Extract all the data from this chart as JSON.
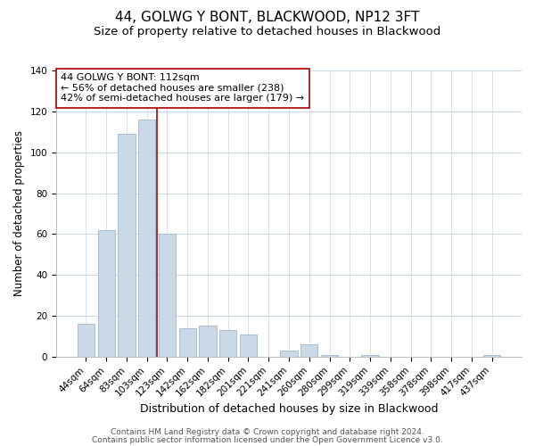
{
  "title": "44, GOLWG Y BONT, BLACKWOOD, NP12 3FT",
  "subtitle": "Size of property relative to detached houses in Blackwood",
  "xlabel": "Distribution of detached houses by size in Blackwood",
  "ylabel": "Number of detached properties",
  "bar_labels": [
    "44sqm",
    "64sqm",
    "83sqm",
    "103sqm",
    "123sqm",
    "142sqm",
    "162sqm",
    "182sqm",
    "201sqm",
    "221sqm",
    "241sqm",
    "260sqm",
    "280sqm",
    "299sqm",
    "319sqm",
    "339sqm",
    "358sqm",
    "378sqm",
    "398sqm",
    "417sqm",
    "437sqm"
  ],
  "bar_values": [
    16,
    62,
    109,
    116,
    60,
    14,
    15,
    13,
    11,
    0,
    3,
    6,
    1,
    0,
    1,
    0,
    0,
    0,
    0,
    0,
    1
  ],
  "bar_color": "#c9d9e8",
  "bar_edge_color": "#a0b8cc",
  "vline_x": 3.5,
  "vline_color": "#aa0000",
  "annotation_line1": "44 GOLWG Y BONT: 112sqm",
  "annotation_line2": "← 56% of detached houses are smaller (238)",
  "annotation_line3": "42% of semi-detached houses are larger (179) →",
  "ylim": [
    0,
    140
  ],
  "yticks": [
    0,
    20,
    40,
    60,
    80,
    100,
    120,
    140
  ],
  "footer_line1": "Contains HM Land Registry data © Crown copyright and database right 2024.",
  "footer_line2": "Contains public sector information licensed under the Open Government Licence v3.0.",
  "background_color": "#ffffff",
  "grid_color": "#c8d8e8",
  "title_fontsize": 11,
  "subtitle_fontsize": 9.5,
  "xlabel_fontsize": 9,
  "ylabel_fontsize": 8.5,
  "tick_fontsize": 7.5,
  "annotation_fontsize": 8,
  "footer_fontsize": 6.5
}
